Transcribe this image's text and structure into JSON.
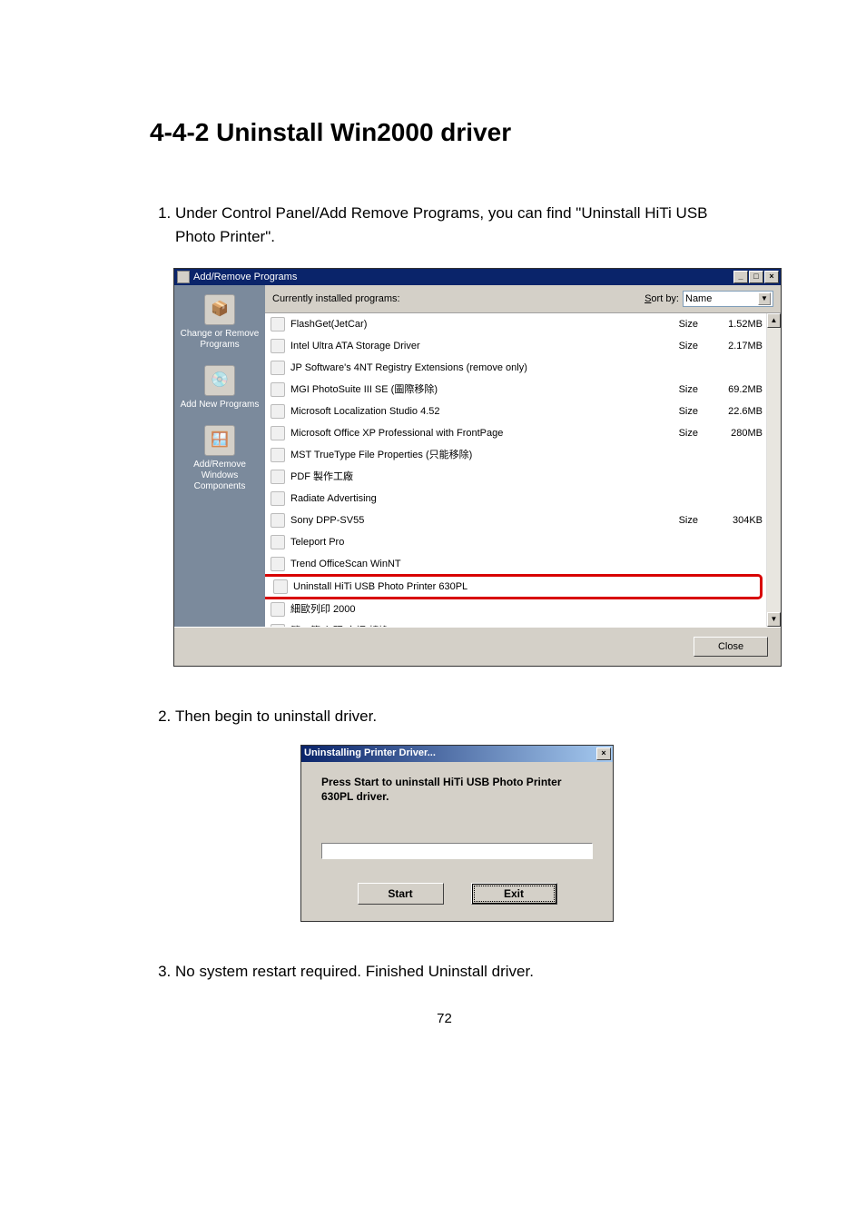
{
  "doc": {
    "section_title": "4-4-2 Uninstall Win2000 driver",
    "step1": "Under Control Panel/Add Remove Programs, you can find \"Uninstall HiTi USB Photo Printer\".",
    "step2": "Then begin to uninstall driver.",
    "step3": "No system restart required.   Finished Uninstall driver.",
    "page_number": "72"
  },
  "addremove": {
    "window_title": "Add/Remove Programs",
    "sidebar": [
      {
        "label": "Change or Remove Programs"
      },
      {
        "label": "Add New Programs"
      },
      {
        "label": "Add/Remove Windows Components"
      }
    ],
    "header_label": "Currently installed programs:",
    "sort_label": "Sort by:",
    "sort_value": "Name",
    "size_label": "Size",
    "close_label": "Close",
    "programs": [
      {
        "name": "FlashGet(JetCar)",
        "size": "1.52MB"
      },
      {
        "name": "Intel Ultra ATA Storage Driver",
        "size": "2.17MB"
      },
      {
        "name": "JP Software's 4NT Registry Extensions (remove only)",
        "size": ""
      },
      {
        "name": "MGI PhotoSuite III SE (圖際移除)",
        "size": "69.2MB"
      },
      {
        "name": "Microsoft Localization Studio 4.52",
        "size": "22.6MB"
      },
      {
        "name": "Microsoft Office XP Professional with FrontPage",
        "size": "280MB"
      },
      {
        "name": "MST TrueType File Properties (只能移除)",
        "size": ""
      },
      {
        "name": "PDF 製作工廠",
        "size": ""
      },
      {
        "name": "Radiate Advertising",
        "size": ""
      },
      {
        "name": "Sony DPP-SV55",
        "size": "304KB"
      },
      {
        "name": "Teleport Pro",
        "size": ""
      },
      {
        "name": "Trend OfficeScan WinNT",
        "size": ""
      },
      {
        "name": "Uninstall HiTi USB Photo Printer 630PL",
        "size": "",
        "highlight": true
      },
      {
        "name": "細歐列印 2000",
        "size": ""
      },
      {
        "name": "繁→簡 內碼/字詞 轉換",
        "size": ""
      }
    ]
  },
  "uninstall_dialog": {
    "title": "Uninstalling Printer Driver...",
    "message": "Press Start to uninstall HiTi USB Photo Printer 630PL driver.",
    "start_label": "Start",
    "exit_label": "Exit"
  },
  "colors": {
    "page_bg": "#ffffff",
    "win_bg": "#d4d0c8",
    "titlebar_bg": "#0a246a",
    "titlebar_text": "#ffffff",
    "sidebar_bg": "#7b8a9c",
    "highlight_border": "#d80000"
  }
}
